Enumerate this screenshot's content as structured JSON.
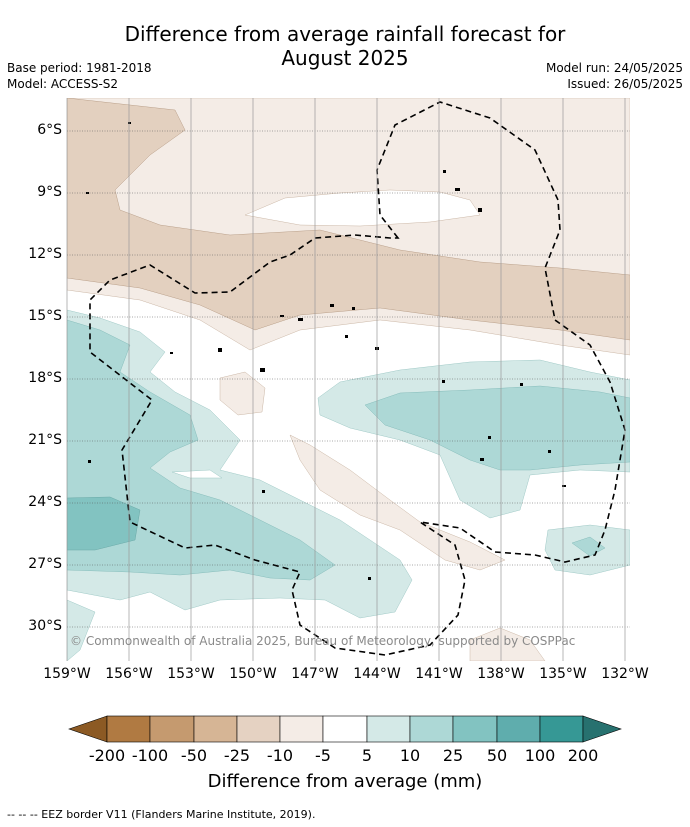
{
  "title_line1": "Difference from average rainfall forecast for",
  "title_line2": "August 2025",
  "base_period": "Base period: 1981-2018",
  "model": "Model: ACCESS-S2",
  "model_run": "Model run: 24/05/2025",
  "issued": "Issued: 26/05/2025",
  "lat_labels": [
    "6°S",
    "9°S",
    "12°S",
    "15°S",
    "18°S",
    "21°S",
    "24°S",
    "27°S",
    "30°S"
  ],
  "lon_labels": [
    "159°W",
    "156°W",
    "153°W",
    "150°W",
    "147°W",
    "144°W",
    "141°W",
    "138°W",
    "135°W",
    "132°W"
  ],
  "copyright": "© Commonwealth of Australia 2025, Bureau of Meteorology, supported by COSPPac",
  "colorbar": {
    "labels": [
      "-200",
      "-100",
      "-50",
      "-25",
      "-10",
      "-5",
      "5",
      "10",
      "25",
      "50",
      "100",
      "200"
    ],
    "colors": [
      "#8c5a24",
      "#b07a42",
      "#c59a6f",
      "#d6b595",
      "#e5d2c2",
      "#f4ece6",
      "#ffffff",
      "#d4e9e7",
      "#add8d6",
      "#82c3c1",
      "#5fadad",
      "#369895",
      "#27716f"
    ],
    "title": "Difference from average (mm)"
  },
  "footnote": "--  --  -- EEZ border V11 (Flanders Marine Institute, 2019)."
}
